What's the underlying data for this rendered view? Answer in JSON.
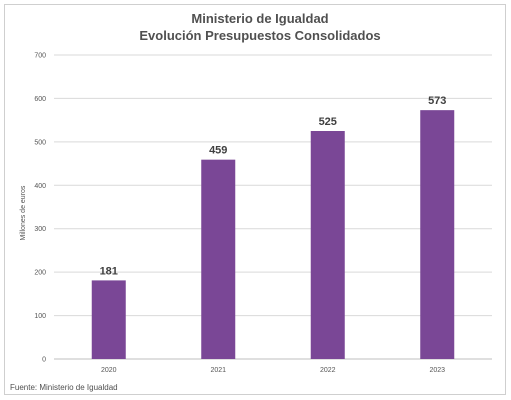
{
  "chart_data": {
    "type": "bar",
    "title": "Ministerio de Igualdad",
    "subtitle": "Evolución Presupuestos Consolidados",
    "xlabel": "",
    "ylabel": "Millones de euros",
    "categories": [
      "2020",
      "2021",
      "2022",
      "2023"
    ],
    "values": [
      181,
      459,
      525,
      573
    ],
    "data_labels": [
      "181",
      "459",
      "525",
      "573"
    ],
    "ylim": [
      0,
      700
    ],
    "yticks": [
      "0",
      "100",
      "200",
      "300",
      "400",
      "500",
      "600",
      "700"
    ],
    "grid": true,
    "legend": "none",
    "bar_color": "#7a4796",
    "grid_color": "#d9d9d9",
    "source": "Fuente: Ministerio de Igualdad"
  }
}
